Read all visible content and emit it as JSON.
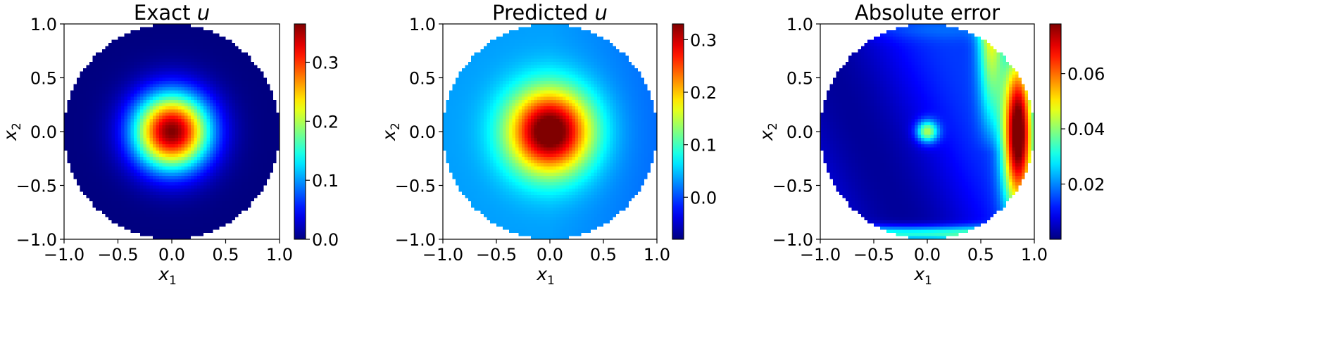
{
  "chart_data": [
    {
      "type": "heatmap",
      "title_text": "Exact",
      "title_var": "u",
      "xlabel_var": "x",
      "xlabel_sub": "1",
      "ylabel_var": "x",
      "ylabel_sub": "2",
      "xlim": [
        -1.0,
        1.0
      ],
      "ylim": [
        -1.0,
        1.0
      ],
      "xticks": [
        "−1.0",
        "−0.5",
        "0.0",
        "0.5",
        "1.0"
      ],
      "yticks": [
        "−1.0",
        "−0.5",
        "0.0",
        "0.5",
        "1.0"
      ],
      "domain": "unit disk",
      "colormap": "jet",
      "field": "exact",
      "colorbar": {
        "min": 0.0,
        "max": 0.365,
        "ticks": [
          0.0,
          0.1,
          0.2,
          0.3
        ],
        "tick_labels": [
          "0.0",
          "0.1",
          "0.2",
          "0.3"
        ]
      }
    },
    {
      "type": "heatmap",
      "title_text": "Predicted",
      "title_var": "u",
      "xlabel_var": "x",
      "xlabel_sub": "1",
      "ylabel_var": "x",
      "ylabel_sub": "2",
      "xlim": [
        -1.0,
        1.0
      ],
      "ylim": [
        -1.0,
        1.0
      ],
      "xticks": [
        "−1.0",
        "−0.5",
        "0.0",
        "0.5",
        "1.0"
      ],
      "yticks": [
        "−1.0",
        "−0.5",
        "0.0",
        "0.5",
        "1.0"
      ],
      "domain": "unit disk",
      "colormap": "jet",
      "field": "predicted",
      "colorbar": {
        "min": -0.08,
        "max": 0.33,
        "ticks": [
          0.0,
          0.1,
          0.2,
          0.3
        ],
        "tick_labels": [
          "0.0",
          "0.1",
          "0.2",
          "0.3"
        ]
      }
    },
    {
      "type": "heatmap",
      "title_text": "Absolute error",
      "title_var": "",
      "xlabel_var": "x",
      "xlabel_sub": "1",
      "ylabel_var": "x",
      "ylabel_sub": "2",
      "xlim": [
        -1.0,
        1.0
      ],
      "ylim": [
        -1.0,
        1.0
      ],
      "xticks": [
        "−1.0",
        "−0.5",
        "0.0",
        "0.5",
        "1.0"
      ],
      "yticks": [
        "−1.0",
        "−0.5",
        "0.0",
        "0.5",
        "1.0"
      ],
      "domain": "unit disk",
      "colormap": "jet",
      "field": "abs_error",
      "colorbar": {
        "min": 0.0,
        "max": 0.078,
        "ticks": [
          0.02,
          0.04,
          0.06
        ],
        "tick_labels": [
          "0.02",
          "0.04",
          "0.06"
        ]
      }
    }
  ]
}
